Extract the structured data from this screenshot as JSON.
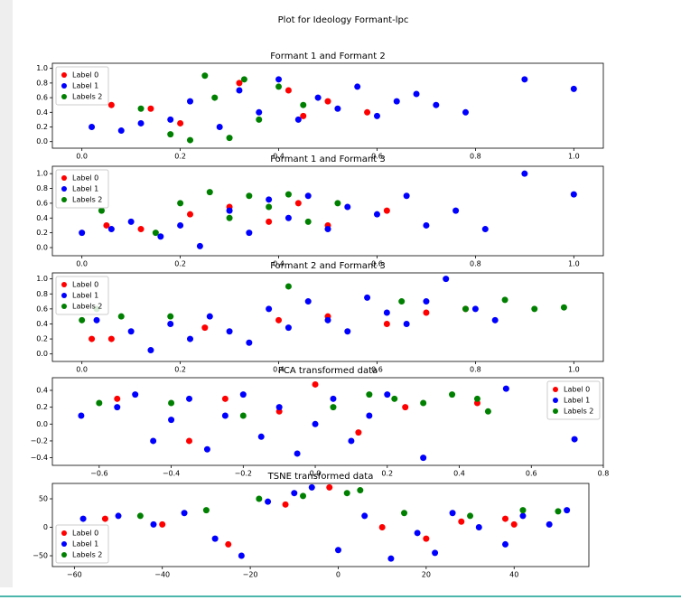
{
  "figure_title": "Plot for Ideology Formant-lpc",
  "chart_data": [
    {
      "type": "scatter",
      "title": "Formant 1 and Formant 2",
      "legend": "upper left",
      "xlim": [
        -0.06,
        1.06
      ],
      "ylim": [
        -0.09,
        1.07
      ],
      "xticks": [
        {
          "value": 0,
          "label": "0.0"
        },
        0.2,
        0.4,
        0.6,
        0.8,
        {
          "value": 1,
          "label": "1.0"
        }
      ],
      "yticks": [
        {
          "value": 0,
          "label": "0.0"
        },
        0.2,
        0.4,
        0.6,
        0.8,
        {
          "value": 1,
          "label": "1.0"
        }
      ],
      "series": [
        {
          "name": "Label 0",
          "color": "#ff0000",
          "x": [
            0.06,
            0.14,
            0.2,
            0.32,
            0.42,
            0.45,
            0.5,
            0.58
          ],
          "y": [
            0.5,
            0.45,
            0.25,
            0.8,
            0.7,
            0.35,
            0.55,
            0.4
          ]
        },
        {
          "name": "Label 1",
          "color": "#0000ff",
          "x": [
            0.02,
            0.08,
            0.12,
            0.18,
            0.22,
            0.28,
            0.32,
            0.36,
            0.4,
            0.44,
            0.48,
            0.52,
            0.56,
            0.6,
            0.64,
            0.68,
            0.72,
            0.78,
            0.9,
            1.0
          ],
          "y": [
            0.2,
            0.15,
            0.25,
            0.3,
            0.55,
            0.2,
            0.7,
            0.4,
            0.85,
            0.3,
            0.6,
            0.45,
            0.75,
            0.35,
            0.55,
            0.65,
            0.5,
            0.4,
            0.85,
            0.72
          ]
        },
        {
          "name": "Labels 2",
          "color": "#008000",
          "x": [
            0.12,
            0.18,
            0.22,
            0.25,
            0.27,
            0.3,
            0.33,
            0.36,
            0.4,
            0.45
          ],
          "y": [
            0.45,
            0.1,
            0.02,
            0.9,
            0.6,
            0.05,
            0.85,
            0.3,
            0.75,
            0.5
          ]
        }
      ]
    },
    {
      "type": "scatter",
      "title": "Formant 1 and Formant 3",
      "legend": "upper left",
      "xlim": [
        -0.06,
        1.06
      ],
      "ylim": [
        -0.11,
        1.1
      ],
      "xticks": [
        {
          "value": 0,
          "label": "0.0"
        },
        0.2,
        0.4,
        0.6,
        0.8,
        {
          "value": 1,
          "label": "1.0"
        }
      ],
      "yticks": [
        {
          "value": 0,
          "label": "0.0"
        },
        0.2,
        0.4,
        0.6,
        0.8,
        {
          "value": 1,
          "label": "1.0"
        }
      ],
      "series": [
        {
          "name": "Label 0",
          "color": "#ff0000",
          "x": [
            0.05,
            0.12,
            0.22,
            0.3,
            0.38,
            0.44,
            0.5,
            0.62
          ],
          "y": [
            0.3,
            0.25,
            0.45,
            0.55,
            0.35,
            0.6,
            0.3,
            0.5
          ]
        },
        {
          "name": "Label 1",
          "color": "#0000ff",
          "x": [
            0.0,
            0.06,
            0.1,
            0.16,
            0.2,
            0.24,
            0.3,
            0.34,
            0.38,
            0.42,
            0.46,
            0.5,
            0.54,
            0.6,
            0.66,
            0.7,
            0.76,
            0.82,
            0.9,
            1.0
          ],
          "y": [
            0.2,
            0.25,
            0.35,
            0.15,
            0.3,
            0.02,
            0.5,
            0.2,
            0.65,
            0.4,
            0.7,
            0.25,
            0.55,
            0.45,
            0.7,
            0.3,
            0.5,
            0.25,
            1.0,
            0.72
          ]
        },
        {
          "name": "Labels 2",
          "color": "#008000",
          "x": [
            0.04,
            0.15,
            0.2,
            0.26,
            0.3,
            0.34,
            0.38,
            0.42,
            0.46,
            0.52
          ],
          "y": [
            0.5,
            0.2,
            0.6,
            0.75,
            0.4,
            0.7,
            0.55,
            0.72,
            0.35,
            0.6
          ]
        }
      ]
    },
    {
      "type": "scatter",
      "title": "Formant 2 and Formant 3",
      "legend": "upper left",
      "xlim": [
        -0.06,
        1.06
      ],
      "ylim": [
        -0.1,
        1.08
      ],
      "xticks": [
        {
          "value": 0,
          "label": "0.0"
        },
        0.2,
        0.4,
        0.6,
        0.8,
        {
          "value": 1,
          "label": "1.0"
        }
      ],
      "yticks": [
        {
          "value": 0,
          "label": "0.0"
        },
        0.2,
        0.4,
        0.6,
        0.8,
        {
          "value": 1,
          "label": "1.0"
        }
      ],
      "series": [
        {
          "name": "Label 0",
          "color": "#ff0000",
          "x": [
            0.02,
            0.06,
            0.25,
            0.4,
            0.5,
            0.62,
            0.7,
            0.78
          ],
          "y": [
            0.2,
            0.2,
            0.35,
            0.45,
            0.5,
            0.4,
            0.55,
            0.6
          ]
        },
        {
          "name": "Label 1",
          "color": "#0000ff",
          "x": [
            0.03,
            0.1,
            0.14,
            0.18,
            0.22,
            0.26,
            0.3,
            0.34,
            0.38,
            0.42,
            0.46,
            0.5,
            0.54,
            0.58,
            0.62,
            0.66,
            0.7,
            0.74,
            0.8,
            0.84
          ],
          "y": [
            0.45,
            0.3,
            0.05,
            0.4,
            0.2,
            0.5,
            0.3,
            0.15,
            0.6,
            0.35,
            0.7,
            0.45,
            0.3,
            0.75,
            0.55,
            0.4,
            0.7,
            1.0,
            0.6,
            0.45
          ]
        },
        {
          "name": "Labels 2",
          "color": "#008000",
          "x": [
            0.0,
            0.03,
            0.08,
            0.18,
            0.42,
            0.65,
            0.78,
            0.86,
            0.92,
            0.98
          ],
          "y": [
            0.45,
            0.6,
            0.5,
            0.5,
            0.9,
            0.7,
            0.6,
            0.72,
            0.6,
            0.62
          ]
        }
      ]
    },
    {
      "type": "scatter",
      "title": "PCA transformed data",
      "legend": "upper right",
      "xlim": [
        -0.73,
        0.8
      ],
      "ylim": [
        -0.49,
        0.55
      ],
      "xticks": [
        {
          "value": -0.6,
          "label": "−0.6"
        },
        {
          "value": -0.4,
          "label": "−0.4"
        },
        {
          "value": -0.2,
          "label": "−0.2"
        },
        {
          "value": 0,
          "label": "0.0"
        },
        0.2,
        0.4,
        0.6,
        0.8
      ],
      "yticks": [
        {
          "value": -0.4,
          "label": "−0.4"
        },
        {
          "value": -0.2,
          "label": "−0.2"
        },
        {
          "value": 0,
          "label": "0.0"
        },
        0.2,
        0.4
      ],
      "series": [
        {
          "name": "Label 0",
          "color": "#ff0000",
          "x": [
            -0.55,
            -0.35,
            -0.25,
            -0.1,
            0.0,
            0.12,
            0.25,
            0.45
          ],
          "y": [
            0.3,
            -0.2,
            0.3,
            0.15,
            0.47,
            -0.1,
            0.2,
            0.25
          ]
        },
        {
          "name": "Label 1",
          "color": "#0000ff",
          "x": [
            -0.65,
            -0.55,
            -0.5,
            -0.45,
            -0.4,
            -0.35,
            -0.3,
            -0.25,
            -0.2,
            -0.15,
            -0.1,
            -0.05,
            0.0,
            0.05,
            0.1,
            0.15,
            0.2,
            0.3,
            0.53,
            0.72
          ],
          "y": [
            0.1,
            0.2,
            0.35,
            -0.2,
            0.05,
            0.3,
            -0.3,
            0.1,
            0.35,
            -0.15,
            0.2,
            -0.35,
            0.0,
            0.3,
            -0.2,
            0.1,
            0.35,
            -0.4,
            0.42,
            -0.18
          ]
        },
        {
          "name": "Labels 2",
          "color": "#008000",
          "x": [
            -0.6,
            -0.4,
            -0.2,
            0.05,
            0.15,
            0.22,
            0.3,
            0.38,
            0.45,
            0.48
          ],
          "y": [
            0.25,
            0.25,
            0.1,
            0.2,
            0.35,
            0.3,
            0.25,
            0.35,
            0.3,
            0.15
          ]
        }
      ]
    },
    {
      "type": "scatter",
      "title": "TSNE transformed data",
      "legend": "lower left",
      "xlim": [
        -65,
        57
      ],
      "ylim": [
        -69,
        77
      ],
      "xticks": [
        {
          "value": -60,
          "label": "−60"
        },
        {
          "value": -40,
          "label": "−40"
        },
        {
          "value": -20,
          "label": "−20"
        },
        0,
        20,
        40
      ],
      "yticks": [
        {
          "value": -50,
          "label": "−50"
        },
        0,
        50
      ],
      "series": [
        {
          "name": "Label 0",
          "color": "#ff0000",
          "x": [
            -53,
            -40,
            -25,
            -12,
            -2,
            10,
            20,
            28,
            38,
            40
          ],
          "y": [
            15,
            5,
            -30,
            40,
            70,
            0,
            -20,
            10,
            15,
            5
          ]
        },
        {
          "name": "Label 1",
          "color": "#0000ff",
          "x": [
            -58,
            -50,
            -42,
            -35,
            -28,
            -22,
            -16,
            -10,
            -6,
            0,
            6,
            12,
            18,
            22,
            26,
            32,
            38,
            42,
            48,
            52
          ],
          "y": [
            15,
            20,
            5,
            25,
            -20,
            -50,
            45,
            60,
            70,
            -40,
            20,
            -55,
            -10,
            -45,
            25,
            0,
            -30,
            20,
            5,
            30
          ]
        },
        {
          "name": "Labels 2",
          "color": "#008000",
          "x": [
            -45,
            -30,
            -18,
            -8,
            2,
            5,
            15,
            30,
            42,
            50
          ],
          "y": [
            20,
            30,
            50,
            55,
            60,
            65,
            25,
            20,
            30,
            28
          ]
        }
      ]
    }
  ]
}
